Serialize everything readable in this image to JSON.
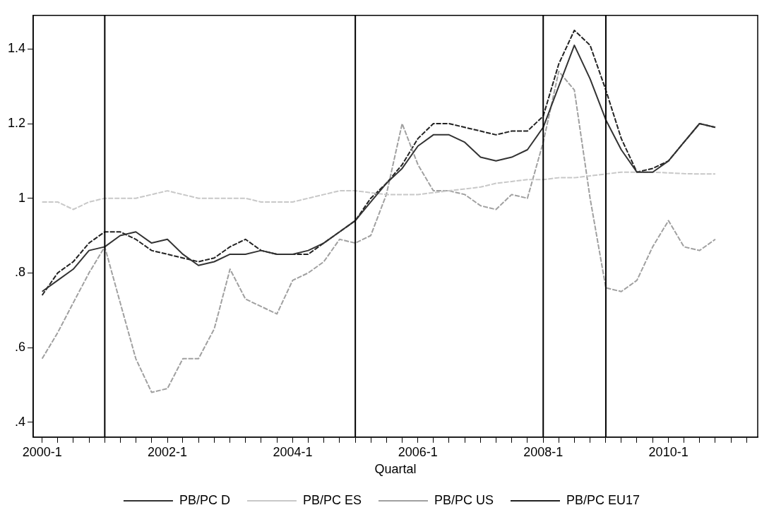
{
  "chart_data": {
    "type": "line",
    "xlabel": "Quartal",
    "x": [
      "2000-01",
      "2000-04",
      "2000-07",
      "2000-10",
      "2001-01",
      "2001-04",
      "2001-07",
      "2001-10",
      "2002-01",
      "2002-04",
      "2002-07",
      "2002-10",
      "2003-01",
      "2003-04",
      "2003-07",
      "2003-10",
      "2004-01",
      "2004-04",
      "2004-07",
      "2004-10",
      "2005-01",
      "2005-04",
      "2005-07",
      "2005-10",
      "2006-01",
      "2006-04",
      "2006-07",
      "2006-10",
      "2007-01",
      "2007-04",
      "2007-07",
      "2007-10",
      "2008-01",
      "2008-04",
      "2008-07",
      "2008-10",
      "2009-01",
      "2009-04",
      "2009-07",
      "2009-10",
      "2010-01",
      "2010-04",
      "2010-07",
      "2010-10"
    ],
    "series": [
      {
        "name": "PB/PC D",
        "color": "#333333",
        "line_style": "solid",
        "values": [
          0.75,
          0.78,
          0.81,
          0.86,
          0.87,
          0.9,
          0.91,
          0.88,
          0.89,
          0.85,
          0.82,
          0.83,
          0.85,
          0.85,
          0.86,
          0.85,
          0.85,
          0.86,
          0.88,
          0.91,
          0.94,
          0.99,
          1.04,
          1.08,
          1.14,
          1.17,
          1.17,
          1.15,
          1.11,
          1.1,
          1.11,
          1.13,
          1.19,
          1.3,
          1.41,
          1.32,
          1.21,
          1.13,
          1.07,
          1.07,
          1.1,
          1.15,
          1.2,
          1.19
        ]
      },
      {
        "name": "PB/PC ES",
        "color": "#c8c8c8",
        "line_style": "dashed",
        "values": [
          0.99,
          0.99,
          0.97,
          0.99,
          1.0,
          1.0,
          1.0,
          1.01,
          1.02,
          1.01,
          1.0,
          1.0,
          1.0,
          1.0,
          0.99,
          0.99,
          0.99,
          1.0,
          1.01,
          1.02,
          1.02,
          1.015,
          1.01,
          1.01,
          1.01,
          1.015,
          1.02,
          1.025,
          1.03,
          1.04,
          1.045,
          1.05,
          1.05,
          1.055,
          1.055,
          1.06,
          1.065,
          1.07,
          1.07,
          1.07,
          1.068,
          1.066,
          1.065,
          1.065
        ]
      },
      {
        "name": "PB/PC US",
        "color": "#a0a0a0",
        "line_style": "dashed",
        "values": [
          0.57,
          0.64,
          0.72,
          0.8,
          0.87,
          0.72,
          0.57,
          0.48,
          0.49,
          0.57,
          0.57,
          0.65,
          0.81,
          0.73,
          0.71,
          0.69,
          0.78,
          0.8,
          0.83,
          0.89,
          0.88,
          0.9,
          1.01,
          1.2,
          1.09,
          1.02,
          1.02,
          1.01,
          0.98,
          0.97,
          1.01,
          1.0,
          1.15,
          1.34,
          1.29,
          1.0,
          0.76,
          0.75,
          0.78,
          0.87,
          0.94,
          0.87,
          0.86,
          0.89
        ]
      },
      {
        "name": "PB/PC EU17",
        "color": "#222222",
        "line_style": "dashed",
        "values": [
          0.74,
          0.8,
          0.83,
          0.88,
          0.91,
          0.91,
          0.89,
          0.86,
          0.85,
          0.84,
          0.83,
          0.84,
          0.87,
          0.89,
          0.86,
          0.85,
          0.85,
          0.85,
          0.88,
          0.91,
          0.94,
          1.0,
          1.04,
          1.09,
          1.16,
          1.2,
          1.2,
          1.19,
          1.18,
          1.17,
          1.18,
          1.18,
          1.22,
          1.36,
          1.45,
          1.41,
          1.29,
          1.16,
          1.07,
          1.08,
          1.1,
          1.15,
          1.2,
          1.19
        ]
      }
    ],
    "xlim": [
      "1999-11-10",
      "2011-06-05"
    ],
    "xticks": [
      {
        "value": "2000-01",
        "label": "2000-1"
      },
      {
        "value": "2000-04",
        "label": null
      },
      {
        "value": "2000-07",
        "label": null
      },
      {
        "value": "2000-10",
        "label": null
      },
      {
        "value": "2001-01",
        "label": null
      },
      {
        "value": "2001-04",
        "label": null
      },
      {
        "value": "2001-07",
        "label": null
      },
      {
        "value": "2001-10",
        "label": null
      },
      {
        "value": "2002-01",
        "label": "2002-1"
      },
      {
        "value": "2002-04",
        "label": null
      },
      {
        "value": "2002-07",
        "label": null
      },
      {
        "value": "2002-10",
        "label": null
      },
      {
        "value": "2003-01",
        "label": null
      },
      {
        "value": "2003-04",
        "label": null
      },
      {
        "value": "2003-07",
        "label": null
      },
      {
        "value": "2003-10",
        "label": null
      },
      {
        "value": "2004-01",
        "label": "2004-1"
      },
      {
        "value": "2004-04",
        "label": null
      },
      {
        "value": "2004-07",
        "label": null
      },
      {
        "value": "2004-10",
        "label": null
      },
      {
        "value": "2005-01",
        "label": null
      },
      {
        "value": "2005-04",
        "label": null
      },
      {
        "value": "2005-07",
        "label": null
      },
      {
        "value": "2005-10",
        "label": null
      },
      {
        "value": "2006-01",
        "label": "2006-1"
      },
      {
        "value": "2006-04",
        "label": null
      },
      {
        "value": "2006-07",
        "label": null
      },
      {
        "value": "2006-10",
        "label": null
      },
      {
        "value": "2007-01",
        "label": null
      },
      {
        "value": "2007-04",
        "label": null
      },
      {
        "value": "2007-07",
        "label": null
      },
      {
        "value": "2007-10",
        "label": null
      },
      {
        "value": "2008-01",
        "label": "2008-1"
      },
      {
        "value": "2008-04",
        "label": null
      },
      {
        "value": "2008-07",
        "label": null
      },
      {
        "value": "2008-10",
        "label": null
      },
      {
        "value": "2009-01",
        "label": null
      },
      {
        "value": "2009-04",
        "label": null
      },
      {
        "value": "2009-07",
        "label": null
      },
      {
        "value": "2009-10",
        "label": null
      },
      {
        "value": "2010-01",
        "label": "2010-1"
      },
      {
        "value": "2010-04",
        "label": null
      },
      {
        "value": "2010-07",
        "label": null
      },
      {
        "value": "2010-10",
        "label": null
      },
      {
        "value": "2011-01",
        "label": null
      },
      {
        "value": "2011-04",
        "label": null
      }
    ],
    "ylim": [
      0.36,
      1.49
    ],
    "yticks": [
      {
        "value": 0.4,
        "label": ".4"
      },
      {
        "value": 0.6,
        "label": ".6"
      },
      {
        "value": 0.8,
        "label": ".8"
      },
      1,
      1.2,
      1.4
    ],
    "ref_lines": [
      {
        "axis": "x",
        "value": "2001-01",
        "color": "#000000"
      },
      {
        "axis": "x",
        "value": "2005-01",
        "color": "#000000"
      },
      {
        "axis": "x",
        "value": "2008-01",
        "color": "#000000"
      },
      {
        "axis": "x",
        "value": "2009-01",
        "color": "#000000"
      }
    ],
    "grid": false,
    "legend": "bottom",
    "marker": "none"
  }
}
